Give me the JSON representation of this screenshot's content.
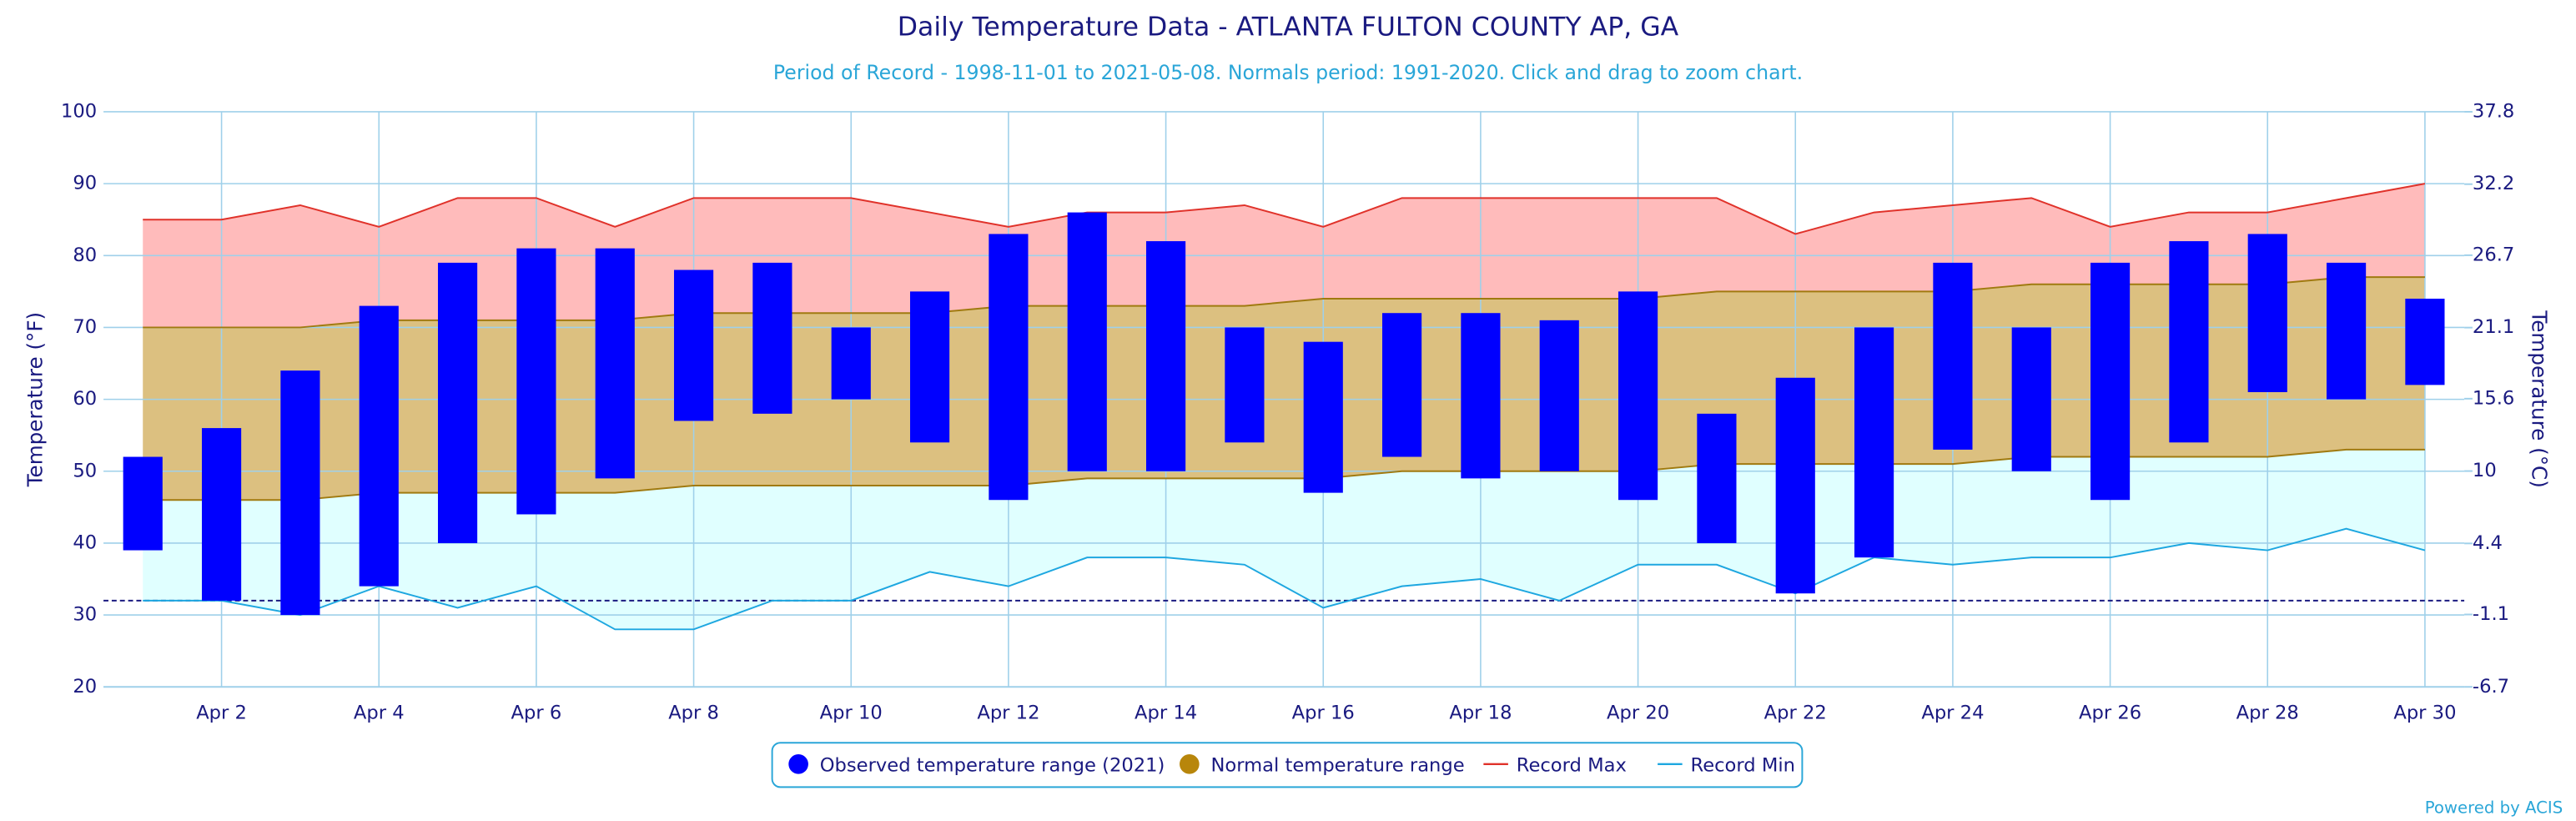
{
  "chart_data": {
    "type": "temperature-range",
    "title": "Daily Temperature Data - ATLANTA FULTON COUNTY AP, GA",
    "subtitle": "Period of Record - 1998-11-01 to 2021-05-08. Normals period: 1991-2020. Click and drag to zoom chart.",
    "y_label": "Temperature (°F)",
    "y2_label": "Temperature (°C)",
    "footer": "Powered by ACIS",
    "categories": [
      null,
      "Apr 2",
      null,
      "Apr 4",
      null,
      "Apr 6",
      null,
      "Apr 8",
      null,
      "Apr 10",
      null,
      "Apr 12",
      null,
      "Apr 14",
      null,
      "Apr 16",
      null,
      "Apr 18",
      null,
      "Apr 20",
      null,
      "Apr 22",
      null,
      "Apr 24",
      null,
      "Apr 26",
      null,
      "Apr 28",
      null,
      "Apr 30"
    ],
    "ylim": [
      20,
      100
    ],
    "yticks": [
      20,
      30,
      40,
      50,
      60,
      70,
      80,
      90,
      100
    ],
    "y2lim": [
      -6.7,
      37.8
    ],
    "y2ticks": [
      -6.7,
      -1.1,
      4.4,
      10,
      15.6,
      21.1,
      26.7,
      32.2,
      37.8
    ],
    "grid": true,
    "freezing_line": 32,
    "series": [
      {
        "name": "Observed temperature range (2021)",
        "color": "#0000ff",
        "kind": "bars",
        "highs": [
          52,
          56,
          64,
          73,
          79,
          81,
          81,
          78,
          79,
          70,
          75,
          83,
          86,
          82,
          70,
          68,
          72,
          72,
          71,
          75,
          58,
          63,
          70,
          79,
          70,
          79,
          82,
          83,
          79,
          74
        ],
        "lows": [
          39,
          32,
          30,
          34,
          40,
          44,
          49,
          57,
          58,
          60,
          54,
          46,
          50,
          50,
          54,
          47,
          52,
          49,
          50,
          46,
          40,
          33,
          38,
          53,
          50,
          46,
          54,
          61,
          60,
          62
        ]
      },
      {
        "name": "Normal temperature range",
        "color": "#b8860b",
        "kind": "band",
        "highs": [
          70,
          70,
          70,
          71,
          71,
          71,
          71,
          72,
          72,
          72,
          72,
          73,
          73,
          73,
          73,
          74,
          74,
          74,
          74,
          74,
          75,
          75,
          75,
          75,
          76,
          76,
          76,
          76,
          77,
          77
        ],
        "lows": [
          46,
          46,
          46,
          47,
          47,
          47,
          47,
          48,
          48,
          48,
          48,
          48,
          49,
          49,
          49,
          49,
          50,
          50,
          50,
          50,
          51,
          51,
          51,
          51,
          52,
          52,
          52,
          52,
          53,
          53
        ]
      },
      {
        "name": "Record Max",
        "color": "#e0322a",
        "kind": "line",
        "values": [
          85,
          85,
          87,
          84,
          88,
          88,
          84,
          88,
          88,
          88,
          86,
          84,
          86,
          86,
          87,
          84,
          88,
          88,
          88,
          88,
          88,
          83,
          86,
          87,
          88,
          84,
          86,
          86,
          88,
          90
        ]
      },
      {
        "name": "Record Min",
        "color": "#1ea7e0",
        "kind": "line",
        "values": [
          32,
          32,
          30,
          34,
          31,
          34,
          28,
          28,
          32,
          32,
          36,
          34,
          38,
          38,
          37,
          31,
          34,
          35,
          32,
          37,
          37,
          33,
          38,
          37,
          38,
          38,
          40,
          39,
          42,
          39
        ]
      }
    ]
  }
}
